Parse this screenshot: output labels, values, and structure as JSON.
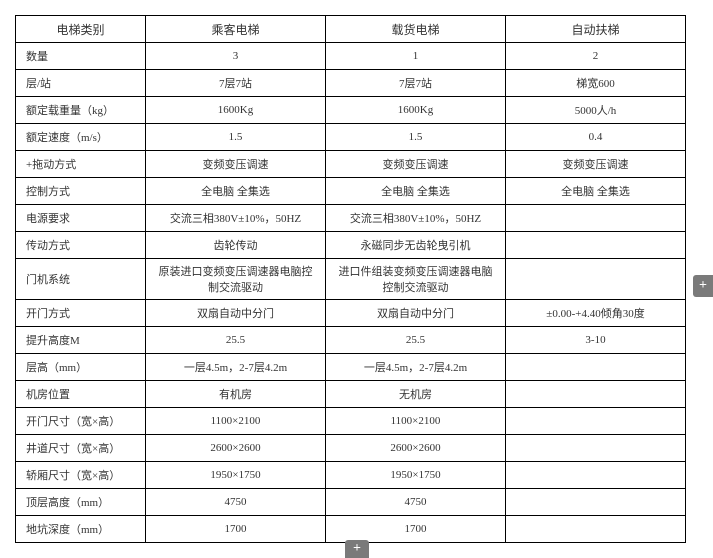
{
  "table": {
    "headers": [
      "电梯类别",
      "乘客电梯",
      "载货电梯",
      "自动扶梯"
    ],
    "rows": [
      {
        "label": "数量",
        "col2": "3",
        "col3": "1",
        "col4": "2"
      },
      {
        "label": "层/站",
        "col2": "7层7站",
        "col3": "7层7站",
        "col4": "梯宽600"
      },
      {
        "label": "额定载重量（kg）",
        "col2": "1600Kg",
        "col3": "1600Kg",
        "col4": "5000人/h"
      },
      {
        "label": "额定速度（m/s）",
        "col2": "1.5",
        "col3": "1.5",
        "col4": "0.4"
      },
      {
        "label": "+拖动方式",
        "col2": "变频变压调速",
        "col3": "变频变压调速",
        "col4": "变频变压调速"
      },
      {
        "label": "控制方式",
        "col2": "全电脑 全集选",
        "col3": "全电脑 全集选",
        "col4": "全电脑 全集选"
      },
      {
        "label": "电源要求",
        "col2": "交流三相380V±10%，50HZ",
        "col3": "交流三相380V±10%，50HZ",
        "col4": ""
      },
      {
        "label": "传动方式",
        "col2": "齿轮传动",
        "col3": "永磁同步无齿轮曳引机",
        "col4": ""
      },
      {
        "label": "门机系统",
        "col2": "原装进口变频变压调速器电脑控制交流驱动",
        "col3": "进口件组装变频变压调速器电脑控制交流驱动",
        "col4": ""
      },
      {
        "label": "开门方式",
        "col2": "双扇自动中分门",
        "col3": "双扇自动中分门",
        "col4": "±0.00-+4.40倾角30度"
      },
      {
        "label": "提升高度M",
        "col2": "25.5",
        "col3": "25.5",
        "col4": "3-10"
      },
      {
        "label": "层高（mm）",
        "col2": "一层4.5m，2-7层4.2m",
        "col3": "一层4.5m，2-7层4.2m",
        "col4": ""
      },
      {
        "label": "机房位置",
        "col2": "有机房",
        "col3": "无机房",
        "col4": ""
      },
      {
        "label": "开门尺寸（宽×高）",
        "col2": "1100×2100",
        "col3": "1100×2100",
        "col4": ""
      },
      {
        "label": "井道尺寸（宽×高）",
        "col2": "2600×2600",
        "col3": "2600×2600",
        "col4": ""
      },
      {
        "label": "轿厢尺寸（宽×高）",
        "col2": "1950×1750",
        "col3": "1950×1750",
        "col4": ""
      },
      {
        "label": "顶层高度（mm）",
        "col2": "4750",
        "col3": "4750",
        "col4": ""
      },
      {
        "label": "地坑深度（mm）",
        "col2": "1700",
        "col3": "1700",
        "col4": ""
      }
    ]
  },
  "plus_icon": "+"
}
